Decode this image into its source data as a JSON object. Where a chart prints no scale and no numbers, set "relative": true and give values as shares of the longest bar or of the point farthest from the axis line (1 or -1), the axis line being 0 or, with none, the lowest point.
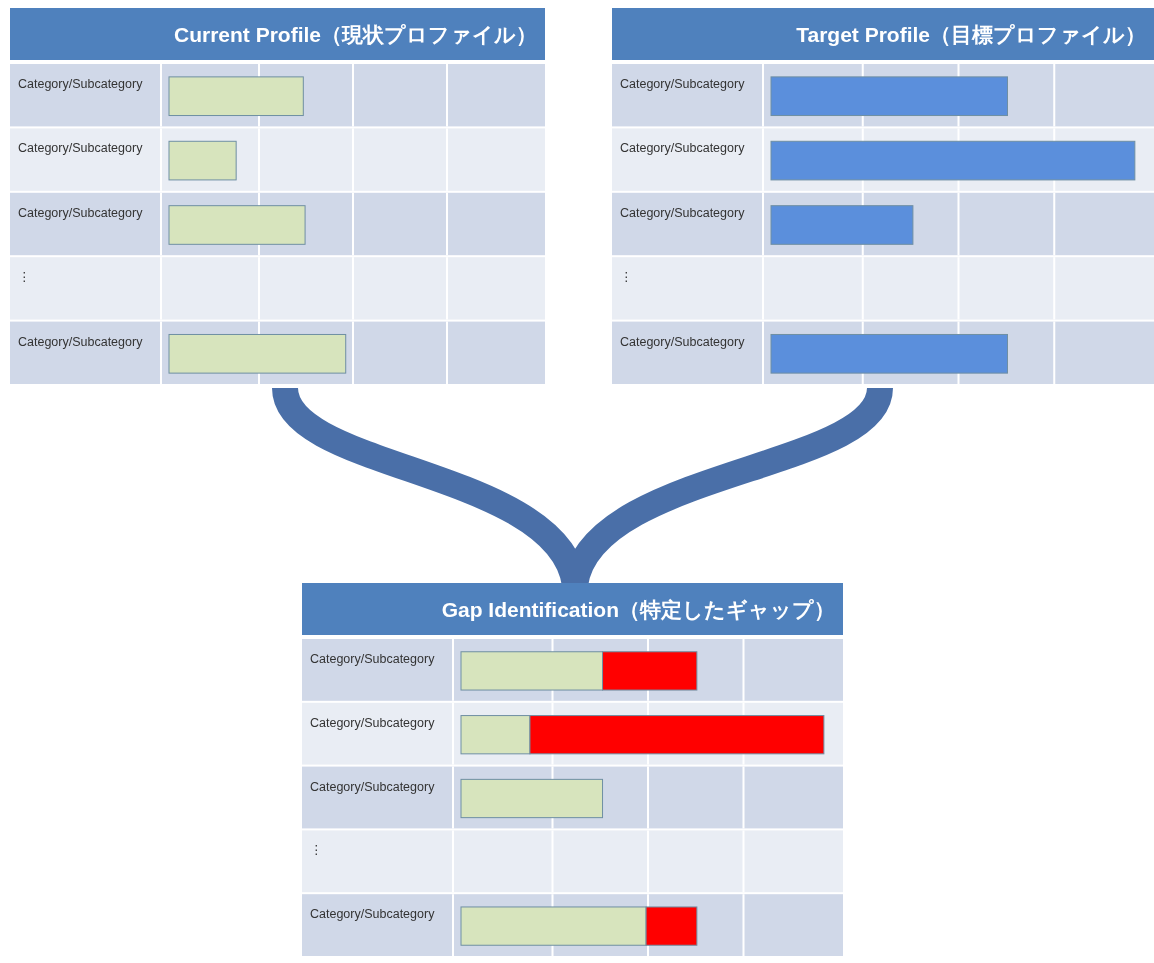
{
  "chart_data": [
    {
      "type": "bar",
      "title": "Current Profile（現状プロファイル）",
      "orientation": "horizontal",
      "relative": true,
      "categories": [
        "Category/Subcategory",
        "Category/Subcategory",
        "Category/Subcategory",
        "⋮",
        "Category/Subcategory"
      ],
      "values": [
        0.76,
        0.38,
        0.77,
        null,
        1
      ],
      "color": "#d7e4bd"
    },
    {
      "type": "bar",
      "title": "Target Profile（目標プロファイル）",
      "orientation": "horizontal",
      "relative": true,
      "categories": [
        "Category/Subcategory",
        "Category/Subcategory",
        "Category/Subcategory",
        "⋮",
        "Category/Subcategory"
      ],
      "values": [
        0.65,
        1,
        0.39,
        null,
        0.65
      ],
      "color": "#5b8fdc"
    },
    {
      "type": "bar",
      "title": "Gap Identification（特定したギャップ）",
      "orientation": "horizontal",
      "relative": true,
      "stacked": true,
      "categories": [
        "Category/Subcategory",
        "Category/Subcategory",
        "Category/Subcategory",
        "⋮",
        "Category/Subcategory"
      ],
      "series": [
        {
          "color": "#d7e4bd",
          "values": [
            0.39,
            0.19,
            0.39,
            null,
            0.51
          ]
        },
        {
          "color": "#ff0000",
          "values": [
            0.26,
            0.81,
            null,
            null,
            0.14
          ]
        }
      ]
    }
  ]
}
